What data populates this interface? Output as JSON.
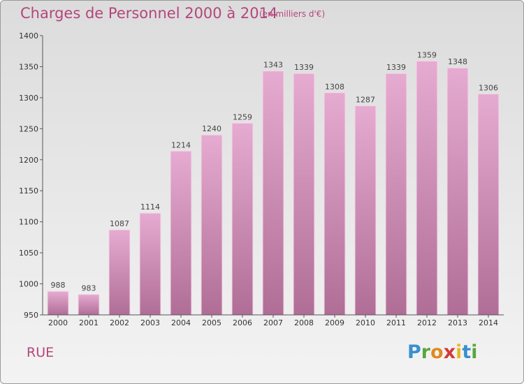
{
  "header": {
    "title": "Charges de Personnel 2000 à 2014",
    "subtitle": "(en milliers d'€)"
  },
  "footer": {
    "commune": "RUE",
    "logo_text": "Proxiti"
  },
  "colors": {
    "bar_top": "#e4a8cf",
    "bar_bottom": "#b06e96",
    "text": "#b4467c",
    "axis": "#555555"
  },
  "chart_data": {
    "type": "bar",
    "title": "Charges de Personnel 2000 à 2014",
    "subtitle": "(en milliers d'€)",
    "categories": [
      "2000",
      "2001",
      "2002",
      "2003",
      "2004",
      "2005",
      "2006",
      "2007",
      "2008",
      "2009",
      "2010",
      "2011",
      "2012",
      "2013",
      "2014"
    ],
    "values": [
      988,
      983,
      1087,
      1114,
      1214,
      1240,
      1259,
      1343,
      1339,
      1308,
      1287,
      1339,
      1359,
      1348,
      1306
    ],
    "ylim": [
      950,
      1400
    ],
    "yticks": [
      950,
      1000,
      1050,
      1100,
      1150,
      1200,
      1250,
      1300,
      1350,
      1400
    ],
    "grid": false,
    "legend": "none"
  }
}
